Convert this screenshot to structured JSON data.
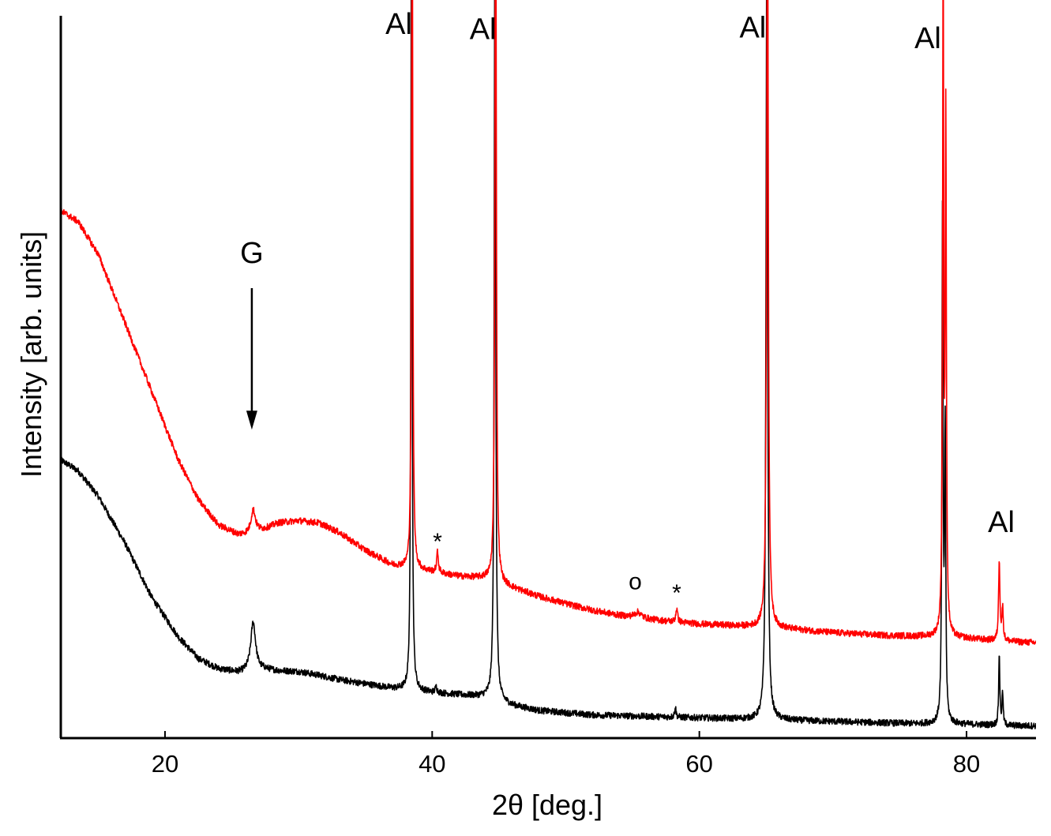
{
  "chart_data": {
    "type": "line",
    "title": "",
    "xlabel": "2θ [deg.]",
    "ylabel": "Intensity [arb. units]",
    "xlim": [
      12.2,
      85.2
    ],
    "ylim": [
      0,
      100
    ],
    "xticks": [
      20,
      40,
      60,
      80
    ],
    "xtick_labels": [
      "20",
      "40",
      "60",
      "80"
    ],
    "grid": false,
    "legend": "none",
    "series": [
      {
        "name": "red trace",
        "color": "#ff0000",
        "baseline": [
          [
            12.2,
            73.0
          ],
          [
            13.5,
            71.5
          ],
          [
            15,
            67.0
          ],
          [
            17,
            57.5
          ],
          [
            19,
            48.0
          ],
          [
            21,
            38.5
          ],
          [
            22.5,
            33.0
          ],
          [
            24,
            29.5
          ],
          [
            25.5,
            28.2
          ],
          [
            26.3,
            28.3
          ],
          [
            27.5,
            29.0
          ],
          [
            28.5,
            29.8
          ],
          [
            30,
            30.1
          ],
          [
            31.5,
            29.8
          ],
          [
            33,
            28.5
          ],
          [
            35,
            26.0
          ],
          [
            37,
            24.0
          ],
          [
            38.5,
            23.5
          ],
          [
            40,
            23.0
          ],
          [
            42,
            22.4
          ],
          [
            44,
            22.1
          ],
          [
            46,
            20.8
          ],
          [
            48,
            19.6
          ],
          [
            50,
            18.6
          ],
          [
            52,
            17.7
          ],
          [
            54,
            17.0
          ],
          [
            56,
            16.5
          ],
          [
            58,
            16.1
          ],
          [
            60,
            15.8
          ],
          [
            62,
            15.6
          ],
          [
            64,
            15.4
          ],
          [
            66,
            15.2
          ],
          [
            68,
            14.9
          ],
          [
            70,
            14.6
          ],
          [
            72,
            14.4
          ],
          [
            74,
            14.2
          ],
          [
            76,
            14.1
          ],
          [
            78,
            14.0
          ],
          [
            80,
            13.8
          ],
          [
            82,
            13.5
          ],
          [
            84,
            13.3
          ],
          [
            85.2,
            13.2
          ]
        ],
        "peaks": [
          {
            "x": 26.6,
            "height": 3.2,
            "width": 0.2
          },
          {
            "x": 38.5,
            "height": 110,
            "width": 0.05
          },
          {
            "x": 40.4,
            "height": 2.8,
            "width": 0.08
          },
          {
            "x": 44.75,
            "height": 110,
            "width": 0.06
          },
          {
            "x": 55.4,
            "height": 0.8,
            "width": 0.3
          },
          {
            "x": 58.3,
            "height": 1.9,
            "width": 0.08
          },
          {
            "x": 65.1,
            "height": 110,
            "width": 0.07
          },
          {
            "x": 78.25,
            "height": 95,
            "width": 0.05
          },
          {
            "x": 78.45,
            "height": 70,
            "width": 0.05
          },
          {
            "x": 82.45,
            "height": 11.2,
            "width": 0.06
          },
          {
            "x": 82.7,
            "height": 4.5,
            "width": 0.06
          }
        ]
      },
      {
        "name": "black trace",
        "color": "#000000",
        "baseline": [
          [
            12.2,
            38.5
          ],
          [
            13.5,
            37.0
          ],
          [
            15,
            33.5
          ],
          [
            17,
            27.0
          ],
          [
            19,
            19.5
          ],
          [
            21,
            14.0
          ],
          [
            22.5,
            11.0
          ],
          [
            24,
            9.6
          ],
          [
            25.5,
            9.1
          ],
          [
            26.3,
            9.2
          ],
          [
            27.5,
            9.5
          ],
          [
            28.5,
            9.3
          ],
          [
            30,
            9.2
          ],
          [
            31.5,
            8.7
          ],
          [
            33,
            8.1
          ],
          [
            35,
            7.5
          ],
          [
            37,
            6.9
          ],
          [
            38.5,
            6.6
          ],
          [
            40,
            6.3
          ],
          [
            42,
            6.0
          ],
          [
            44,
            5.7
          ],
          [
            46,
            4.5
          ],
          [
            48,
            3.8
          ],
          [
            50,
            3.5
          ],
          [
            52,
            3.2
          ],
          [
            54,
            3.1
          ],
          [
            56,
            3.0
          ],
          [
            58,
            2.9
          ],
          [
            60,
            2.8
          ],
          [
            62,
            2.7
          ],
          [
            64,
            2.6
          ],
          [
            66,
            2.5
          ],
          [
            68,
            2.4
          ],
          [
            70,
            2.3
          ],
          [
            72,
            2.2
          ],
          [
            74,
            2.1
          ],
          [
            76,
            2.0
          ],
          [
            78,
            2.0
          ],
          [
            80,
            1.9
          ],
          [
            82,
            1.8
          ],
          [
            84,
            1.7
          ],
          [
            85.2,
            1.7
          ]
        ],
        "peaks": [
          {
            "x": 26.6,
            "height": 6.8,
            "width": 0.22
          },
          {
            "x": 38.45,
            "height": 115,
            "width": 0.05
          },
          {
            "x": 40.3,
            "height": 0.8,
            "width": 0.08
          },
          {
            "x": 44.7,
            "height": 115,
            "width": 0.06
          },
          {
            "x": 58.2,
            "height": 1.5,
            "width": 0.06
          },
          {
            "x": 65.05,
            "height": 110,
            "width": 0.07
          },
          {
            "x": 78.2,
            "height": 70,
            "width": 0.05
          },
          {
            "x": 78.4,
            "height": 40,
            "width": 0.05
          },
          {
            "x": 82.45,
            "height": 10.0,
            "width": 0.05
          },
          {
            "x": 82.7,
            "height": 4.5,
            "width": 0.05
          }
        ]
      }
    ],
    "annotations": [
      {
        "text": "Al",
        "x": 37.5,
        "y": 97.5,
        "size": "large"
      },
      {
        "text": "Al",
        "x": 43.8,
        "y": 96.8,
        "size": "large"
      },
      {
        "text": "Al",
        "x": 64.0,
        "y": 97.0,
        "size": "large"
      },
      {
        "text": "Al",
        "x": 77.1,
        "y": 95.5,
        "size": "large"
      },
      {
        "text": "Al",
        "x": 82.6,
        "y": 28.5,
        "size": "large"
      },
      {
        "text": "G",
        "x": 26.5,
        "y": 65.8,
        "size": "large"
      },
      {
        "text": "*",
        "x": 40.4,
        "y": 26.1,
        "size": "small"
      },
      {
        "text": "o",
        "x": 55.2,
        "y": 20.6,
        "size": "small"
      },
      {
        "text": "*",
        "x": 58.3,
        "y": 19.0,
        "size": "small"
      }
    ],
    "arrow": {
      "label": "G",
      "x": 26.5,
      "y_from": 62.3,
      "y_to": 42.7
    }
  }
}
